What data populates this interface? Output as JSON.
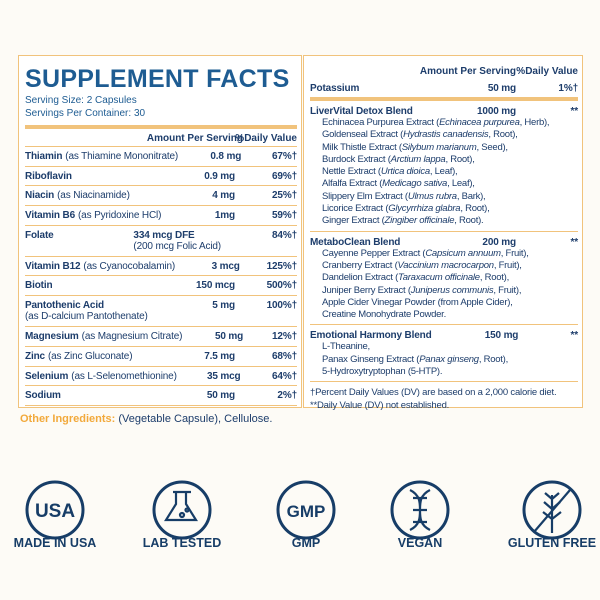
{
  "title": "SUPPLEMENT FACTS",
  "serving_size": "Serving Size: 2 Capsules",
  "servings_per_container": "Servings Per Container: 30",
  "left_table": {
    "header": {
      "amount": "Amount Per Serving",
      "dv": "%Daily Value"
    },
    "rows": [
      {
        "name": "Thiamin",
        "source": "(as Thiamine Mononitrate)",
        "amount": "0.8 mg",
        "dv": "67%†"
      },
      {
        "name": "Riboflavin",
        "amount": "0.9 mg",
        "dv": "69%†"
      },
      {
        "name": "Niacin",
        "source": "(as Niacinamide)",
        "amount": "4 mg",
        "dv": "25%†"
      },
      {
        "name": "Vitamin B6",
        "source": "(as Pyridoxine HCl)",
        "amount": "1mg",
        "dv": "59%†"
      },
      {
        "name": "Folate",
        "amount": "334 mcg DFE",
        "amount_note": "(200 mcg Folic Acid)",
        "dv": "84%†"
      },
      {
        "name": "Vitamin B12",
        "source": "(as Cyanocobalamin)",
        "amount": "3 mcg",
        "dv": "125%†"
      },
      {
        "name": "Biotin",
        "amount": "150 mcg",
        "dv": "500%†"
      },
      {
        "name": "Pantothenic Acid",
        "subline": "(as D-calcium Pantothenate)",
        "amount": "5 mg",
        "dv": "100%†"
      },
      {
        "name": "Magnesium",
        "source": "(as Magnesium Citrate)",
        "amount": "50 mg",
        "dv": "12%†"
      },
      {
        "name": "Zinc",
        "source": "(as Zinc Gluconate)",
        "amount": "7.5 mg",
        "dv": "68%†"
      },
      {
        "name": "Selenium",
        "source": "(as L-Selenomethionine)",
        "amount": "35 mcg",
        "dv": "64%†"
      },
      {
        "name": "Sodium",
        "amount": "50 mg",
        "dv": "2%†"
      }
    ]
  },
  "right_table": {
    "header": {
      "amount": "Amount Per Serving",
      "dv": "%Daily Value"
    },
    "rows": [
      {
        "name": "Potassium",
        "amount": "50 mg",
        "dv": "1%†"
      }
    ],
    "blends": [
      {
        "name": "LiverVital Detox Blend",
        "amount": "1000 mg",
        "dv": "**",
        "ingredients": [
          {
            "text": "Echinacea Purpurea Extract (",
            "italic": "Echinacea purpurea",
            "rest": ", Herb),"
          },
          {
            "text": "Goldenseal Extract (",
            "italic": "Hydrastis canadensis",
            "rest": ", Root),"
          },
          {
            "text": "Milk Thistle Extract (",
            "italic": "Silybum marianum",
            "rest": ", Seed),"
          },
          {
            "text": "Burdock Extract (",
            "italic": "Arctium lappa",
            "rest": ", Root),"
          },
          {
            "text": "Nettle Extract (",
            "italic": "Urtica dioica",
            "rest": ", Leaf),"
          },
          {
            "text": "Alfalfa Extract (",
            "italic": "Medicago sativa",
            "rest": ", Leaf),"
          },
          {
            "text": "Slippery Elm Extract (",
            "italic": "Ulmus rubra",
            "rest": ", Bark),"
          },
          {
            "text": "Licorice Extract (",
            "italic": "Glycyrrhiza glabra",
            "rest": ", Root),"
          },
          {
            "text": "Ginger Extract (",
            "italic": "Zingiber officinale",
            "rest": ", Root)."
          }
        ]
      },
      {
        "name": "MetaboClean Blend",
        "amount": "200 mg",
        "dv": "**",
        "ingredients": [
          {
            "text": "Cayenne Pepper Extract (",
            "italic": "Capsicum annuum",
            "rest": ", Fruit),"
          },
          {
            "text": "Cranberry Extract (",
            "italic": "Vaccinium macrocarpon",
            "rest": ", Fruit),"
          },
          {
            "text": "Dandelion Extract (",
            "italic": "Taraxacum officinale",
            "rest": ", Root),"
          },
          {
            "text": "Juniper Berry Extract (",
            "italic": "Juniperus communis",
            "rest": ", Fruit),"
          },
          {
            "text": "Apple Cider Vinegar Powder (from Apple Cider),"
          },
          {
            "text": "Creatine Monohydrate Powder."
          }
        ]
      },
      {
        "name": "Emotional Harmony Blend",
        "amount": "150 mg",
        "dv": "**",
        "ingredients": [
          {
            "text": "L-Theanine,"
          },
          {
            "text": "Panax Ginseng Extract (",
            "italic": "Panax ginseng",
            "rest": ", Root),"
          },
          {
            "text": "5-Hydroxytryptophan (5-HTP)."
          }
        ]
      }
    ],
    "footnotes": [
      "†Percent Daily Values (DV) are based on a 2,000 calorie diet.",
      "**Daily Value (DV) not established."
    ]
  },
  "other_ingredients": {
    "label": "Other Ingredients:",
    "text": "(Vegetable Capsule), Cellulose."
  },
  "badges": [
    {
      "icon": "USA",
      "label": "MADE IN USA"
    },
    {
      "label": "LAB TESTED"
    },
    {
      "icon": "GMP",
      "label": "GMP"
    },
    {
      "label": "VEGAN"
    },
    {
      "label": "GLUTEN FREE"
    }
  ]
}
